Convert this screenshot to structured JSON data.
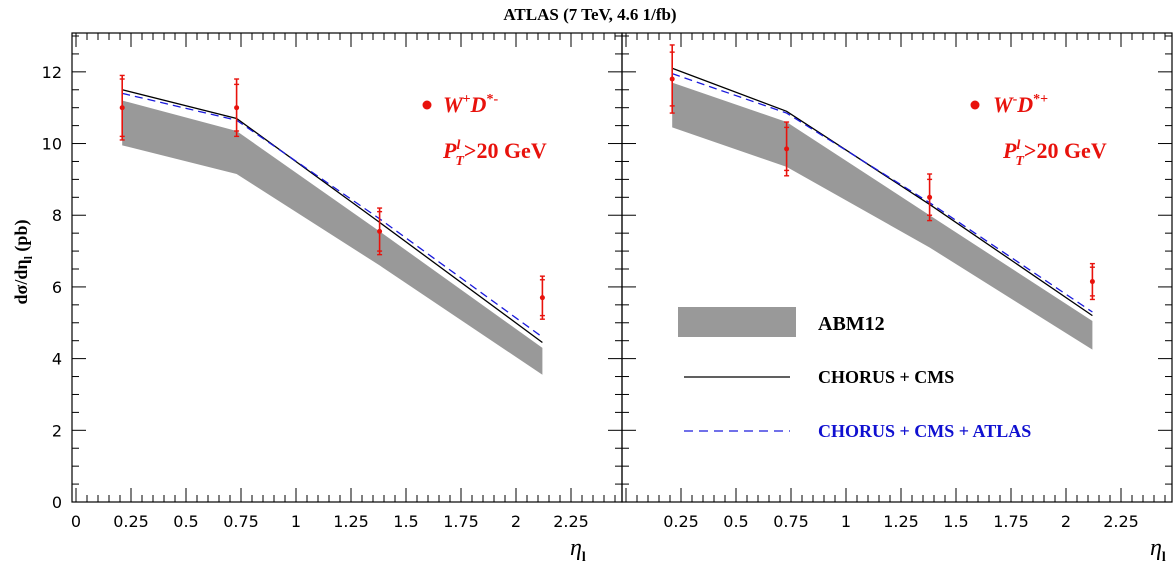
{
  "title": "ATLAS (7 TeV, 4.6 1/fb)",
  "ylabel": {
    "main": "dσ/dη",
    "sub": "l",
    "unit": " (pb)"
  },
  "xlabel": {
    "main": "η",
    "sub": "l"
  },
  "colors": {
    "band": "#999999",
    "data": "#e8120c",
    "nominal": "#000000",
    "updated": "#1a1adc",
    "legend_blue_text": "#1010d0"
  },
  "legend": {
    "band": "ABM12",
    "solid": "CHORUS + CMS",
    "dashed": "CHORUS + CMS + ATLAS"
  },
  "chart_data": [
    {
      "type": "line",
      "panel": "left",
      "process": {
        "base": "W",
        "sup1": "+",
        "D": "D",
        "sup2": "*-"
      },
      "cut": {
        "P": "P",
        "sup": "l",
        "sub": "T",
        "rest": ">20 GeV"
      },
      "xlim": [
        0,
        2.5
      ],
      "ylim": [
        0,
        13
      ],
      "x_ticks": [
        "0",
        "0.25",
        "0.5",
        "0.75",
        "1",
        "1.25",
        "1.5",
        "1.75",
        "2",
        "2.25"
      ],
      "y_ticks": [
        "0",
        "2",
        "4",
        "6",
        "8",
        "10",
        "12"
      ],
      "data_points": [
        {
          "x": 0.21,
          "y": 11.0,
          "stat_err": 0.8,
          "tot_err": 0.9
        },
        {
          "x": 0.73,
          "y": 11.0,
          "stat_err": 0.65,
          "tot_err": 0.8
        },
        {
          "x": 1.38,
          "y": 7.55,
          "stat_err": 0.55,
          "tot_err": 0.65
        },
        {
          "x": 2.12,
          "y": 5.7,
          "stat_err": 0.5,
          "tot_err": 0.6
        }
      ],
      "series": [
        {
          "name": "ABM12",
          "style": "band",
          "x": [
            0.21,
            0.73,
            1.38,
            2.12
          ],
          "low": [
            9.95,
            9.15,
            6.6,
            3.55
          ],
          "high": [
            11.2,
            10.35,
            7.55,
            4.3
          ]
        },
        {
          "name": "CHORUS + CMS",
          "style": "solid",
          "x": [
            0.21,
            0.73,
            1.38,
            2.12
          ],
          "y": [
            11.5,
            10.7,
            7.8,
            4.45
          ]
        },
        {
          "name": "CHORUS + CMS + ATLAS",
          "style": "dashed",
          "x": [
            0.21,
            0.73,
            1.38,
            2.12
          ],
          "y": [
            11.4,
            10.65,
            7.9,
            4.6
          ]
        }
      ]
    },
    {
      "type": "line",
      "panel": "right",
      "process": {
        "base": "W",
        "sup1": "-",
        "D": "D",
        "sup2": "*+"
      },
      "cut": {
        "P": "P",
        "sup": "l",
        "sub": "T",
        "rest": ">20 GeV"
      },
      "xlim": [
        0,
        2.5
      ],
      "ylim": [
        0,
        13
      ],
      "x_ticks": [
        "0.25",
        "0.5",
        "0.75",
        "1",
        "1.25",
        "1.5",
        "1.75",
        "2",
        "2.25"
      ],
      "data_points": [
        {
          "x": 0.21,
          "y": 11.8,
          "stat_err": 0.75,
          "tot_err": 0.95
        },
        {
          "x": 0.73,
          "y": 9.85,
          "stat_err": 0.6,
          "tot_err": 0.75
        },
        {
          "x": 1.38,
          "y": 8.5,
          "stat_err": 0.5,
          "tot_err": 0.65
        },
        {
          "x": 2.12,
          "y": 6.15,
          "stat_err": 0.4,
          "tot_err": 0.5
        }
      ],
      "series": [
        {
          "name": "ABM12",
          "style": "band",
          "x": [
            0.21,
            0.73,
            1.38,
            2.12
          ],
          "low": [
            10.45,
            9.35,
            7.1,
            4.25
          ],
          "high": [
            11.7,
            10.6,
            8.0,
            5.05
          ]
        },
        {
          "name": "CHORUS + CMS",
          "style": "solid",
          "x": [
            0.21,
            0.73,
            1.38,
            2.12
          ],
          "y": [
            12.1,
            10.9,
            8.3,
            5.2
          ]
        },
        {
          "name": "CHORUS + CMS + ATLAS",
          "style": "dashed",
          "x": [
            0.21,
            0.73,
            1.38,
            2.12
          ],
          "y": [
            11.95,
            10.85,
            8.35,
            5.3
          ]
        }
      ]
    }
  ]
}
